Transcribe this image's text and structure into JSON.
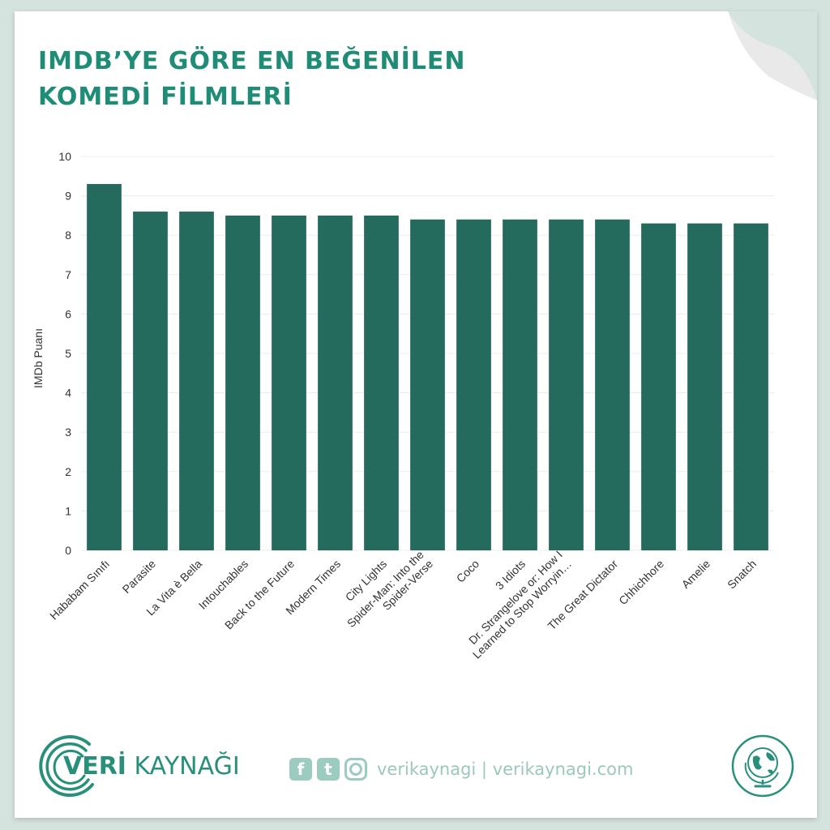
{
  "title_lines": [
    "IMDB’YE GÖRE EN BEĞENİLEN",
    "KOMEDİ FİLMLERİ"
  ],
  "chart_data": {
    "type": "bar",
    "ylabel": "IMDb Puanı",
    "xlabel": "",
    "ylim": [
      0,
      10
    ],
    "yticks": [
      0,
      1,
      2,
      3,
      4,
      5,
      6,
      7,
      8,
      9,
      10
    ],
    "grid": true,
    "bar_color": "#246b5e",
    "categories": [
      [
        "Hababam Sınıfı"
      ],
      [
        "Parasite"
      ],
      [
        "La Vita è Bella"
      ],
      [
        "Intouchables"
      ],
      [
        "Back to the Future"
      ],
      [
        "Modern Times"
      ],
      [
        "City Lights"
      ],
      [
        "Spider-Man: Into the",
        "Spider-Verse"
      ],
      [
        "Coco"
      ],
      [
        "3 Idiots"
      ],
      [
        "Dr. Strangelove or: How I",
        "Learned to Stop Worryin…"
      ],
      [
        "The Great Dictator"
      ],
      [
        "Chhichhore"
      ],
      [
        "Amelie"
      ],
      [
        "Snatch"
      ]
    ],
    "values": [
      9.3,
      8.6,
      8.6,
      8.5,
      8.5,
      8.5,
      8.5,
      8.4,
      8.4,
      8.4,
      8.4,
      8.4,
      8.3,
      8.3,
      8.3
    ]
  },
  "brand": {
    "bold": "VERİ",
    "thin": " KAYNAĞI"
  },
  "footer": {
    "handle": "verikaynagi | verikaynagi.com",
    "facebook_glyph": "f",
    "twitter_glyph": "t"
  },
  "colors": {
    "accent": "#1f8c76",
    "bar": "#246b5e",
    "background": "#d5e3df",
    "social": "#9cccbf"
  },
  "icons": [
    "brand-arc-icon",
    "facebook-icon",
    "twitter-icon",
    "instagram-icon",
    "globe-icon"
  ]
}
